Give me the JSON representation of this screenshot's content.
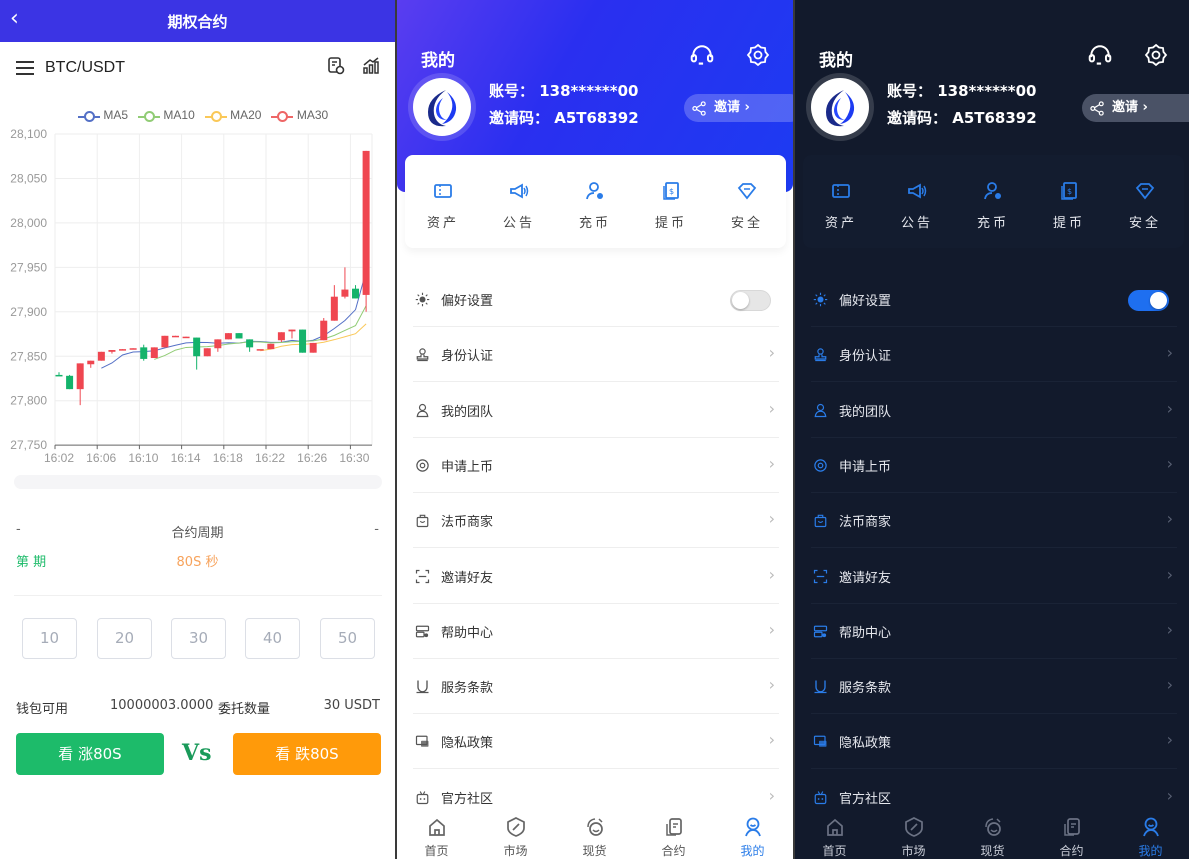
{
  "contract": {
    "header_title": "期权合约",
    "pair": "BTC/USDT",
    "legend": [
      {
        "name": "MA5",
        "color": "#5470c6"
      },
      {
        "name": "MA10",
        "color": "#91cc75"
      },
      {
        "name": "MA20",
        "color": "#fac858"
      },
      {
        "name": "MA30",
        "color": "#ee6666"
      }
    ],
    "period_label": "合约周期",
    "period_left": "-",
    "period_right": "-",
    "issue_label": "第 期",
    "period_value": "80S 秒",
    "amounts": [
      "10",
      "20",
      "30",
      "40",
      "50"
    ],
    "wallet_label": "钱包可用",
    "wallet_value": "10000003.0000",
    "order_label": "委托数量",
    "order_value": "30 USDT",
    "buy_up": "看 涨80S",
    "vs": "Vs",
    "buy_down": "看 跌80S",
    "colors": {
      "brand": "#3b34e4",
      "up": "#1dbb6a",
      "down": "#ff9a0a",
      "rise_candle": "#ef4650",
      "fall_candle": "#14b36b"
    }
  },
  "chart_data": {
    "type": "candlestick",
    "ylim": [
      27750,
      28100
    ],
    "yticks": [
      "27,750",
      "27,800",
      "27,850",
      "27,900",
      "27,950",
      "28,000",
      "28,050",
      "28,100"
    ],
    "ytick_values": [
      27750,
      27800,
      27850,
      27900,
      27950,
      28000,
      28050,
      28100
    ],
    "xticks": [
      "16:02",
      "16:06",
      "16:10",
      "16:14",
      "16:18",
      "16:22",
      "16:26",
      "16:30"
    ],
    "grid": true,
    "legend_position": "top",
    "x": [
      "16:02",
      "16:03",
      "16:04",
      "16:05",
      "16:06",
      "16:07",
      "16:08",
      "16:09",
      "16:10",
      "16:11",
      "16:12",
      "16:13",
      "16:14",
      "16:15",
      "16:16",
      "16:17",
      "16:18",
      "16:19",
      "16:20",
      "16:21",
      "16:22",
      "16:23",
      "16:24",
      "16:25",
      "16:26",
      "16:27",
      "16:28",
      "16:29",
      "16:30",
      "16:31"
    ],
    "ohlc": [
      [
        27829,
        27832,
        27828,
        27828
      ],
      [
        27828,
        27829,
        27813,
        27813
      ],
      [
        27813,
        27842,
        27795,
        27842
      ],
      [
        27841,
        27845,
        27837,
        27845
      ],
      [
        27845,
        27855,
        27845,
        27855
      ],
      [
        27855,
        27857,
        27853,
        27857
      ],
      [
        27857,
        27858,
        27857,
        27858
      ],
      [
        27858,
        27859,
        27858,
        27859
      ],
      [
        27860,
        27863,
        27845,
        27847
      ],
      [
        27848,
        27860,
        27848,
        27860
      ],
      [
        27860,
        27873,
        27860,
        27873
      ],
      [
        27872,
        27873,
        27872,
        27873
      ],
      [
        27871,
        27872,
        27871,
        27872
      ],
      [
        27871,
        27871,
        27835,
        27850
      ],
      [
        27850,
        27859,
        27850,
        27859
      ],
      [
        27859,
        27869,
        27855,
        27869
      ],
      [
        27869,
        27876,
        27869,
        27876
      ],
      [
        27876,
        27876,
        27870,
        27870
      ],
      [
        27869,
        27869,
        27855,
        27860
      ],
      [
        27858,
        27858,
        27858,
        27858
      ],
      [
        27858,
        27864,
        27858,
        27864
      ],
      [
        27868,
        27877,
        27866,
        27877
      ],
      [
        27878,
        27880,
        27870,
        27880
      ],
      [
        27880,
        27880,
        27854,
        27854
      ],
      [
        27854,
        27865,
        27854,
        27865
      ],
      [
        27868,
        27893,
        27868,
        27890
      ],
      [
        27890,
        27930,
        27890,
        27917
      ],
      [
        27917,
        27950,
        27915,
        27925
      ],
      [
        27926,
        27930,
        27915,
        27915
      ],
      [
        27919,
        28081,
        27900,
        28081
      ]
    ],
    "series": [
      {
        "name": "MA5",
        "period": 5
      },
      {
        "name": "MA10",
        "period": 10
      },
      {
        "name": "MA20",
        "period": 20
      },
      {
        "name": "MA30",
        "period": 30
      }
    ]
  },
  "profile": {
    "title": "我的",
    "account": "账号：  138******00",
    "invite_code": "邀请码：  A5T68392",
    "invite_button": "邀请",
    "quick_actions": [
      {
        "label": "资产",
        "icon": "ticket-icon"
      },
      {
        "label": "公告",
        "icon": "megaphone-icon"
      },
      {
        "label": "充币",
        "icon": "user-coin-icon"
      },
      {
        "label": "提币",
        "icon": "dollar-doc-icon"
      },
      {
        "label": "安全",
        "icon": "diamond-icon"
      }
    ],
    "menu": [
      {
        "label": "偏好设置",
        "icon": "sun-icon",
        "toggle": true
      },
      {
        "label": "身份认证",
        "icon": "stamp-icon"
      },
      {
        "label": "我的团队",
        "icon": "user-icon"
      },
      {
        "label": "申请上币",
        "icon": "coin-icon"
      },
      {
        "label": "法币商家",
        "icon": "bag-icon"
      },
      {
        "label": "邀请好友",
        "icon": "scan-icon"
      },
      {
        "label": "帮助中心",
        "icon": "server-icon"
      },
      {
        "label": "服务条款",
        "icon": "magnet-icon"
      },
      {
        "label": "隐私政策",
        "icon": "window-icon"
      },
      {
        "label": "官方社区",
        "icon": "robot-icon"
      }
    ],
    "nav": [
      {
        "label": "首页",
        "icon": "home-icon"
      },
      {
        "label": "市场",
        "icon": "compass-icon"
      },
      {
        "label": "现货",
        "icon": "exchange-icon"
      },
      {
        "label": "合约",
        "icon": "document-icon"
      },
      {
        "label": "我的",
        "icon": "profile-icon",
        "active": true
      }
    ],
    "light_toggle_on": false,
    "dark_toggle_on": true,
    "accent": "#2a7ce8"
  }
}
